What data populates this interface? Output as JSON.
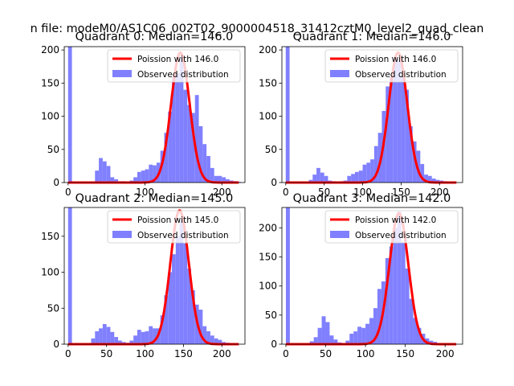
{
  "figure_title": "n file: modeM0/AS1C06_002T02_9000004518_31412cztM0_level2_quad_clean",
  "colors": {
    "hist": "#8080ff",
    "poisson": "#ff0000"
  },
  "chart_data": [
    {
      "type": "bar+line",
      "title": "Quadrant 0: Median=146.0",
      "xlim": [
        -5,
        230
      ],
      "ylim": [
        0,
        205
      ],
      "xticks": [
        0,
        100,
        200
      ],
      "yticks": [
        0,
        50,
        100,
        150,
        200
      ],
      "legend": [
        "Poission with 146.0",
        "Observed distribution"
      ],
      "poisson_mean": 146.0,
      "poisson_peak": 196,
      "bin_width": 5,
      "hist": [
        [
          0,
          205
        ],
        [
          5,
          0
        ],
        [
          10,
          0
        ],
        [
          15,
          0
        ],
        [
          20,
          0
        ],
        [
          25,
          0
        ],
        [
          30,
          0
        ],
        [
          35,
          18
        ],
        [
          40,
          37
        ],
        [
          45,
          32
        ],
        [
          50,
          25
        ],
        [
          55,
          8
        ],
        [
          60,
          5
        ],
        [
          65,
          2
        ],
        [
          70,
          2
        ],
        [
          75,
          1
        ],
        [
          80,
          3
        ],
        [
          85,
          8
        ],
        [
          90,
          16
        ],
        [
          95,
          18
        ],
        [
          100,
          20
        ],
        [
          105,
          27
        ],
        [
          110,
          26
        ],
        [
          115,
          30
        ],
        [
          120,
          48
        ],
        [
          125,
          75
        ],
        [
          130,
          107
        ],
        [
          135,
          160
        ],
        [
          140,
          165
        ],
        [
          145,
          190
        ],
        [
          150,
          140
        ],
        [
          155,
          117
        ],
        [
          160,
          105
        ],
        [
          165,
          132
        ],
        [
          170,
          85
        ],
        [
          175,
          58
        ],
        [
          180,
          40
        ],
        [
          185,
          22
        ],
        [
          190,
          10
        ],
        [
          195,
          10
        ],
        [
          200,
          8
        ],
        [
          205,
          5
        ],
        [
          210,
          3
        ],
        [
          215,
          2
        ],
        [
          220,
          1
        ]
      ]
    },
    {
      "type": "bar+line",
      "title": "Quadrant 1: Median=146.0",
      "xlim": [
        -5,
        230
      ],
      "ylim": [
        0,
        205
      ],
      "xticks": [
        0,
        50,
        100,
        150,
        200
      ],
      "yticks": [
        0,
        50,
        100,
        150,
        200
      ],
      "legend": [
        "Poission with 146.0",
        "Observed distribution"
      ],
      "poisson_mean": 146.0,
      "poisson_peak": 196,
      "bin_width": 5,
      "hist": [
        [
          0,
          205
        ],
        [
          5,
          0
        ],
        [
          10,
          0
        ],
        [
          15,
          0
        ],
        [
          20,
          0
        ],
        [
          25,
          0
        ],
        [
          30,
          4
        ],
        [
          35,
          12
        ],
        [
          40,
          22
        ],
        [
          45,
          15
        ],
        [
          50,
          10
        ],
        [
          55,
          3
        ],
        [
          60,
          2
        ],
        [
          65,
          1
        ],
        [
          70,
          2
        ],
        [
          75,
          3
        ],
        [
          80,
          10
        ],
        [
          85,
          13
        ],
        [
          90,
          16
        ],
        [
          95,
          18
        ],
        [
          100,
          27
        ],
        [
          105,
          30
        ],
        [
          110,
          35
        ],
        [
          115,
          55
        ],
        [
          120,
          75
        ],
        [
          125,
          108
        ],
        [
          130,
          145
        ],
        [
          135,
          160
        ],
        [
          140,
          190
        ],
        [
          145,
          185
        ],
        [
          150,
          160
        ],
        [
          155,
          140
        ],
        [
          160,
          85
        ],
        [
          165,
          62
        ],
        [
          170,
          48
        ],
        [
          175,
          28
        ],
        [
          180,
          12
        ],
        [
          185,
          10
        ],
        [
          190,
          6
        ],
        [
          195,
          4
        ],
        [
          200,
          3
        ],
        [
          205,
          2
        ],
        [
          210,
          1
        ]
      ]
    },
    {
      "type": "bar+line",
      "title": "Quadrant 2: Median=145.0",
      "xlim": [
        -5,
        230
      ],
      "ylim": [
        0,
        190
      ],
      "xticks": [
        0,
        50,
        100,
        150,
        200
      ],
      "yticks": [
        0,
        50,
        100,
        150
      ],
      "legend": [
        "Poission with 145.0",
        "Observed distribution"
      ],
      "poisson_mean": 145.0,
      "poisson_peak": 186,
      "bin_width": 5,
      "hist": [
        [
          0,
          190
        ],
        [
          5,
          0
        ],
        [
          10,
          0
        ],
        [
          15,
          0
        ],
        [
          20,
          0
        ],
        [
          25,
          0
        ],
        [
          30,
          8
        ],
        [
          35,
          18
        ],
        [
          40,
          22
        ],
        [
          45,
          28
        ],
        [
          50,
          24
        ],
        [
          55,
          17
        ],
        [
          60,
          10
        ],
        [
          65,
          5
        ],
        [
          70,
          3
        ],
        [
          75,
          2
        ],
        [
          80,
          5
        ],
        [
          85,
          12
        ],
        [
          90,
          20
        ],
        [
          95,
          17
        ],
        [
          100,
          18
        ],
        [
          105,
          25
        ],
        [
          110,
          22
        ],
        [
          115,
          22
        ],
        [
          120,
          40
        ],
        [
          125,
          68
        ],
        [
          130,
          100
        ],
        [
          135,
          125
        ],
        [
          140,
          150
        ],
        [
          145,
          172
        ],
        [
          150,
          140
        ],
        [
          155,
          105
        ],
        [
          160,
          75
        ],
        [
          165,
          55
        ],
        [
          170,
          48
        ],
        [
          175,
          25
        ],
        [
          180,
          18
        ],
        [
          185,
          12
        ],
        [
          190,
          8
        ],
        [
          195,
          6
        ],
        [
          200,
          3
        ],
        [
          205,
          2
        ],
        [
          210,
          1
        ]
      ]
    },
    {
      "type": "bar+line",
      "title": "Quadrant 3: Median=142.0",
      "xlim": [
        -5,
        222
      ],
      "ylim": [
        0,
        235
      ],
      "xticks": [
        0,
        50,
        100,
        150,
        200
      ],
      "yticks": [
        0,
        50,
        100,
        150,
        200
      ],
      "legend": [
        "Poission with 142.0",
        "Observed distribution"
      ],
      "poisson_mean": 142.0,
      "poisson_peak": 225,
      "bin_width": 5,
      "hist": [
        [
          0,
          235
        ],
        [
          5,
          0
        ],
        [
          10,
          0
        ],
        [
          15,
          0
        ],
        [
          20,
          0
        ],
        [
          25,
          0
        ],
        [
          30,
          5
        ],
        [
          35,
          12
        ],
        [
          40,
          28
        ],
        [
          45,
          48
        ],
        [
          50,
          38
        ],
        [
          55,
          15
        ],
        [
          60,
          8
        ],
        [
          65,
          3
        ],
        [
          70,
          2
        ],
        [
          75,
          6
        ],
        [
          80,
          18
        ],
        [
          85,
          22
        ],
        [
          90,
          30
        ],
        [
          95,
          28
        ],
        [
          100,
          35
        ],
        [
          105,
          45
        ],
        [
          110,
          62
        ],
        [
          115,
          95
        ],
        [
          120,
          108
        ],
        [
          125,
          148
        ],
        [
          130,
          168
        ],
        [
          135,
          200
        ],
        [
          140,
          228
        ],
        [
          145,
          175
        ],
        [
          150,
          130
        ],
        [
          155,
          78
        ],
        [
          160,
          45
        ],
        [
          165,
          28
        ],
        [
          170,
          18
        ],
        [
          175,
          10
        ],
        [
          180,
          6
        ],
        [
          185,
          4
        ],
        [
          190,
          2
        ],
        [
          195,
          1
        ]
      ]
    }
  ]
}
